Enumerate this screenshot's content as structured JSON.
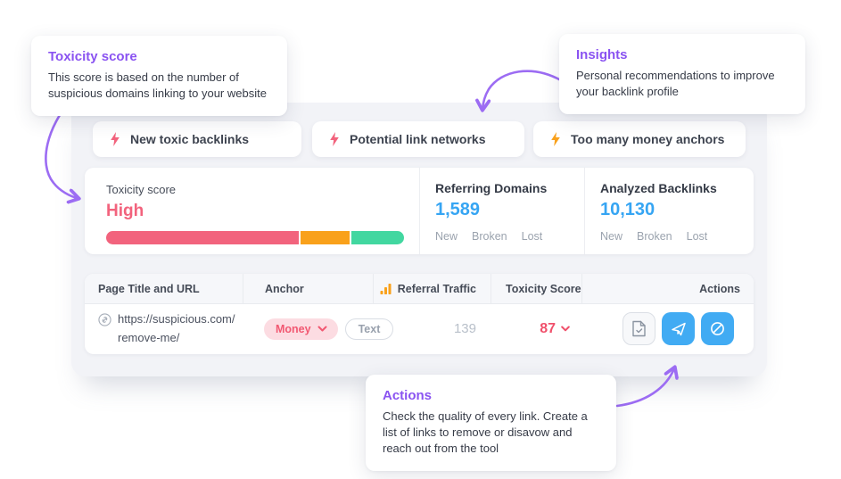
{
  "colors": {
    "accent_purple": "#8a53f1",
    "arrow_purple": "#9c6cf3",
    "toxic_pink": "#f2637d",
    "warning_orange": "#f9a11b",
    "safe_green": "#42d7a0",
    "metric_blue": "#36a5f3",
    "button_blue": "#41abf3",
    "score_red": "#f0506b",
    "panel_bg": "#f2f3f7"
  },
  "callouts": {
    "toxicity": {
      "title": "Toxicity score",
      "body": "This score is based on the number of suspicious domains linking to your website"
    },
    "insights": {
      "title": "Insights",
      "body": "Personal recommendations to improve your backlink profile"
    },
    "actions": {
      "title": "Actions",
      "body": "Check the quality of every link. Create a list of links to remove or disavow and reach out from the tool"
    }
  },
  "alerts": [
    {
      "label": "New toxic backlinks",
      "icon": "bolt-icon",
      "icon_color": "#f2637d"
    },
    {
      "label": "Potential link networks",
      "icon": "bolt-icon",
      "icon_color": "#f2637d"
    },
    {
      "label": "Too many money anchors",
      "icon": "bolt-icon",
      "icon_color": "#f9a11b"
    }
  ],
  "stats": {
    "toxicity": {
      "label": "Toxicity score",
      "value": "High",
      "bar": [
        {
          "name": "toxic",
          "color": "#f2637d",
          "pct": 65.5
        },
        {
          "name": "potentially_toxic",
          "color": "#f9a11b",
          "pct": 16.5
        },
        {
          "name": "non_toxic",
          "color": "#42d7a0",
          "pct": 18
        }
      ]
    },
    "referring_domains": {
      "label": "Referring Domains",
      "value": "1,589",
      "sub": [
        "New",
        "Broken",
        "Lost"
      ]
    },
    "analyzed_backlinks": {
      "label": "Analyzed Backlinks",
      "value": "10,130",
      "sub": [
        "New",
        "Broken",
        "Lost"
      ]
    }
  },
  "table": {
    "columns": {
      "page": "Page Title and URL",
      "anchor": "Anchor",
      "traffic": "Referral Traffic",
      "toxicity": "Toxicity Score",
      "actions": "Actions"
    },
    "row": {
      "url_line1": "https://suspicious.com/",
      "url_line2": "remove-me/",
      "anchor_money": "Money",
      "anchor_text": "Text",
      "referral_traffic": "139",
      "toxicity_score": "87"
    }
  }
}
